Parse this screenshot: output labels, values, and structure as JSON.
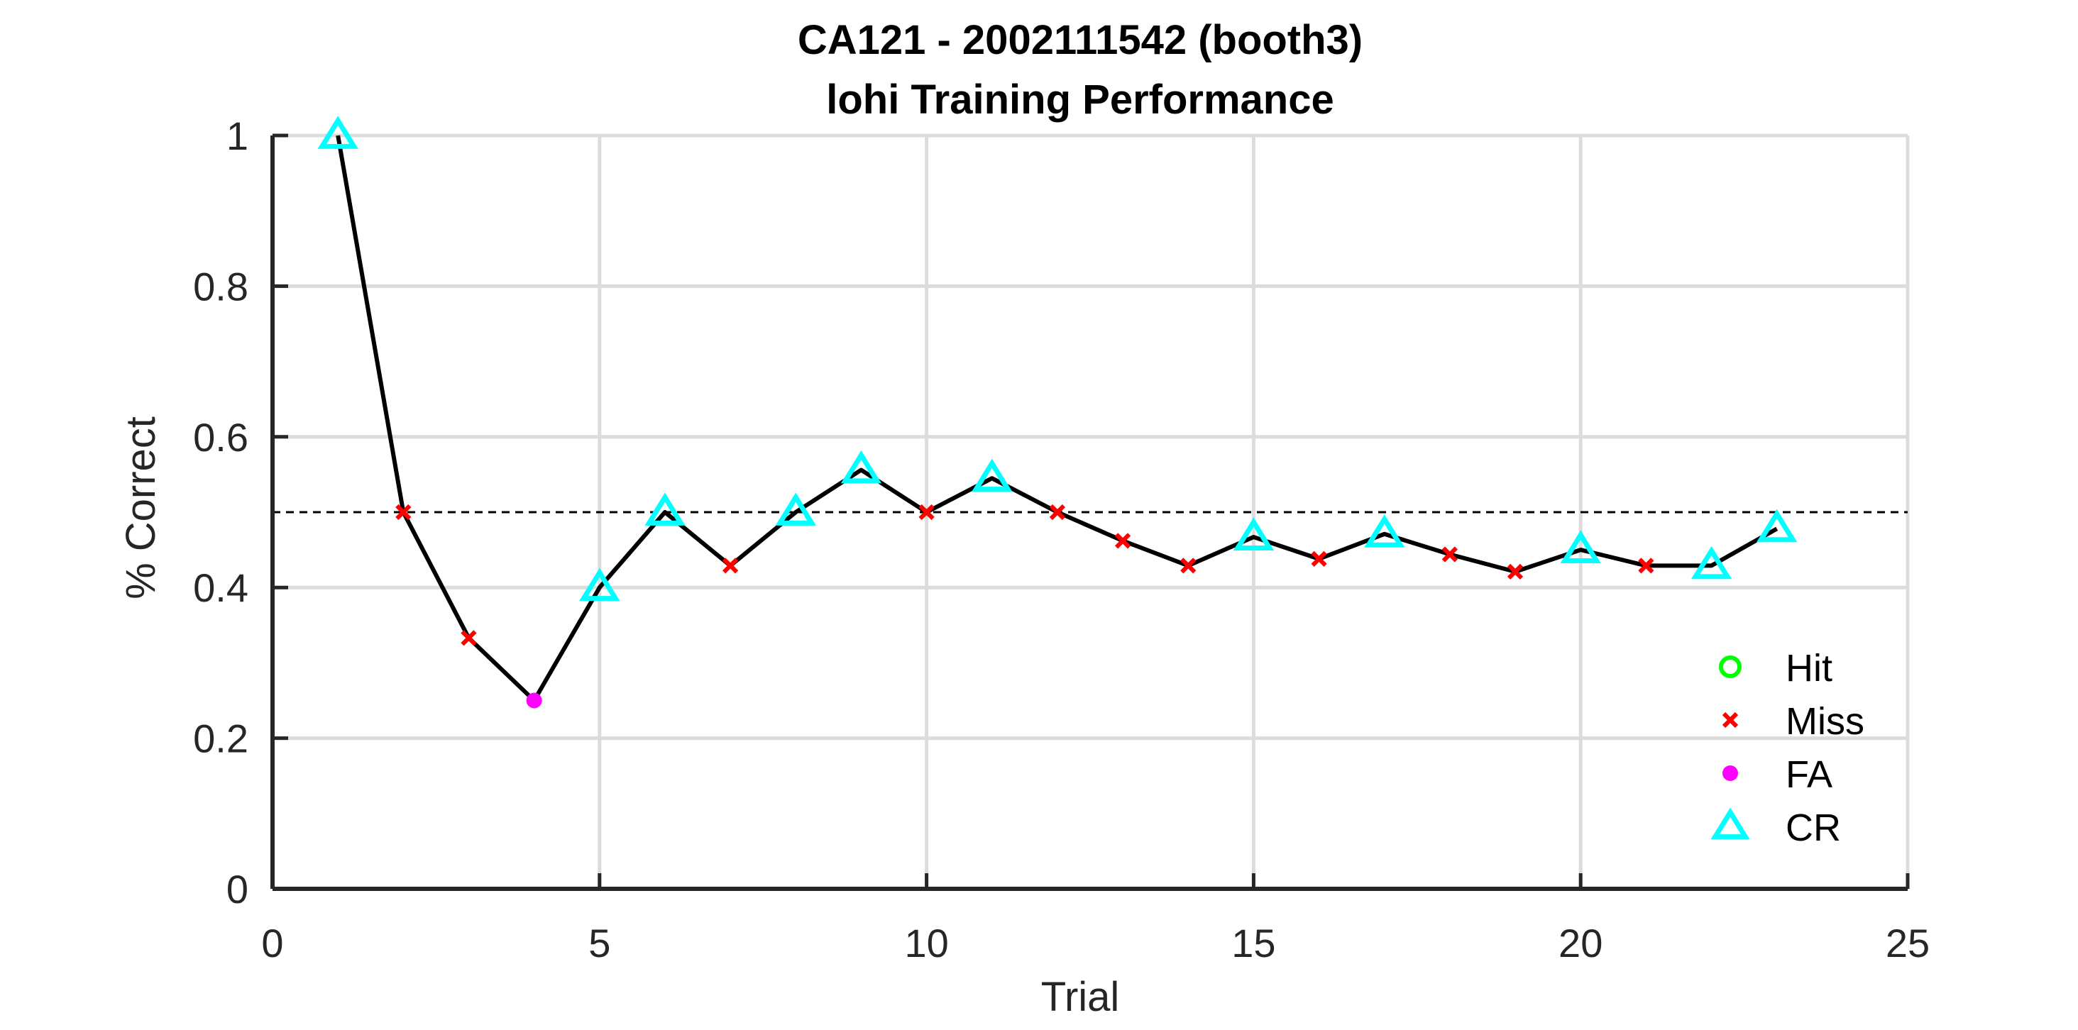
{
  "chart_data": {
    "type": "line",
    "title": "CA121 - 2002111542 (booth3)",
    "subtitle": "lohi Training Performance",
    "xlabel": "Trial",
    "ylabel": "% Correct",
    "xlim": [
      0,
      25
    ],
    "ylim": [
      0,
      1
    ],
    "xticks": [
      0,
      5,
      10,
      15,
      20,
      25
    ],
    "yticks": [
      0,
      0.2,
      0.4,
      0.6,
      0.8,
      1
    ],
    "xtick_labels": [
      "0",
      "5",
      "10",
      "15",
      "20",
      "25"
    ],
    "ytick_labels": [
      "0",
      "0.2",
      "0.4",
      "0.6",
      "0.8",
      "1"
    ],
    "grid": true,
    "legend_position": "bottom-right",
    "reference_line": {
      "y": 0.5,
      "style": "dashed"
    },
    "x": [
      1,
      2,
      3,
      4,
      5,
      6,
      7,
      8,
      9,
      10,
      11,
      12,
      13,
      14,
      15,
      16,
      17,
      18,
      19,
      20,
      21,
      22,
      23
    ],
    "y": [
      1.0,
      0.5,
      0.333,
      0.25,
      0.4,
      0.5,
      0.429,
      0.5,
      0.556,
      0.5,
      0.545,
      0.5,
      0.462,
      0.429,
      0.467,
      0.438,
      0.471,
      0.444,
      0.421,
      0.45,
      0.429,
      0.429,
      0.478
    ],
    "outcomes": [
      "CR",
      "Miss",
      "Miss",
      "FA",
      "CR",
      "CR",
      "Miss",
      "CR",
      "CR",
      "Miss",
      "CR",
      "Miss",
      "Miss",
      "Miss",
      "CR",
      "Miss",
      "CR",
      "Miss",
      "Miss",
      "CR",
      "Miss",
      "CR",
      "CR"
    ],
    "legend": [
      {
        "label": "Hit",
        "marker": "circle",
        "color": "#00ff00"
      },
      {
        "label": "Miss",
        "marker": "x",
        "color": "#ff0000"
      },
      {
        "label": "FA",
        "marker": "filled-circle",
        "color": "#ff00ff"
      },
      {
        "label": "CR",
        "marker": "triangle",
        "color": "#00ffff"
      }
    ],
    "colors": {
      "line": "#000000",
      "axis": "#262626",
      "grid": "#dcdcdc",
      "Hit": "#00ff00",
      "Miss": "#ff0000",
      "FA": "#ff00ff",
      "CR": "#00ffff"
    }
  }
}
